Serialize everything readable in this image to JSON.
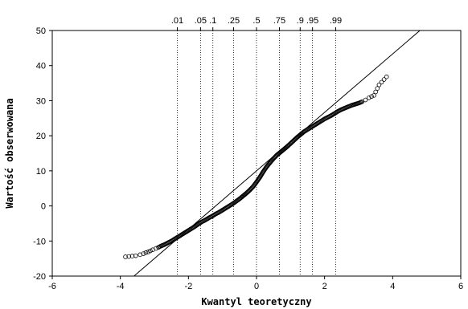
{
  "chart_data": {
    "type": "scatter",
    "title": "",
    "xlabel": "Kwantyl teoretyczny",
    "ylabel": "Wartość obserwowana",
    "xlim": [
      -6,
      6
    ],
    "ylim": [
      -20,
      50
    ],
    "xticks": [
      -6,
      -4,
      -2,
      0,
      2,
      4,
      6
    ],
    "yticks": [
      -20,
      -10,
      0,
      10,
      20,
      30,
      40,
      50
    ],
    "grid": false,
    "legend": "none",
    "probability_lines": [
      {
        "label": ".01",
        "z": -2.326
      },
      {
        "label": ".05",
        "z": -1.645
      },
      {
        "label": ".1",
        "z": -1.282
      },
      {
        "label": ".25",
        "z": -0.674
      },
      {
        "label": ".5",
        "z": 0.0
      },
      {
        "label": ".75",
        "z": 0.674
      },
      {
        "label": ".9",
        "z": 1.282
      },
      {
        "label": ".95",
        "z": 1.645
      },
      {
        "label": ".99",
        "z": 2.326
      }
    ],
    "reference_line": {
      "x": [
        -3.6,
        4.8
      ],
      "y": [
        -20,
        50
      ]
    },
    "series": [
      {
        "points": [
          [
            -3.85,
            -14.5
          ],
          [
            -3.55,
            -14.2
          ],
          [
            -3.42,
            -13.9
          ],
          [
            -3.32,
            -13.6
          ],
          [
            -3.25,
            -13.3
          ],
          [
            -3.18,
            -13.1
          ],
          [
            -3.12,
            -12.8
          ],
          [
            -3.05,
            -12.5
          ],
          [
            -2.95,
            -12.1
          ],
          [
            -2.88,
            -11.8
          ],
          [
            -2.8,
            -11.4
          ],
          [
            -2.7,
            -11.0
          ],
          [
            -2.6,
            -10.5
          ],
          [
            -2.5,
            -10.0
          ],
          [
            -2.4,
            -9.4
          ],
          [
            -2.3,
            -8.8
          ],
          [
            -2.2,
            -8.2
          ],
          [
            -2.1,
            -7.6
          ],
          [
            -2.0,
            -7.0
          ],
          [
            -1.9,
            -6.4
          ],
          [
            -1.8,
            -5.8
          ],
          [
            -1.7,
            -5.1
          ],
          [
            -1.6,
            -4.5
          ],
          [
            -1.5,
            -4.0
          ],
          [
            -1.4,
            -3.4
          ],
          [
            -1.3,
            -2.9
          ],
          [
            -1.2,
            -2.3
          ],
          [
            -1.1,
            -1.8
          ],
          [
            -1.0,
            -1.2
          ],
          [
            -0.9,
            -0.6
          ],
          [
            -0.8,
            0.0
          ],
          [
            -0.7,
            0.6
          ],
          [
            -0.6,
            1.3
          ],
          [
            -0.5,
            2.0
          ],
          [
            -0.4,
            2.8
          ],
          [
            -0.3,
            3.6
          ],
          [
            -0.2,
            4.5
          ],
          [
            -0.1,
            5.5
          ],
          [
            0.0,
            6.8
          ],
          [
            0.1,
            8.2
          ],
          [
            0.2,
            9.8
          ],
          [
            0.3,
            11.2
          ],
          [
            0.4,
            12.4
          ],
          [
            0.5,
            13.5
          ],
          [
            0.6,
            14.5
          ],
          [
            0.7,
            15.3
          ],
          [
            0.8,
            16.1
          ],
          [
            0.9,
            16.9
          ],
          [
            1.0,
            17.8
          ],
          [
            1.1,
            18.7
          ],
          [
            1.2,
            19.6
          ],
          [
            1.3,
            20.4
          ],
          [
            1.4,
            21.2
          ],
          [
            1.5,
            21.8
          ],
          [
            1.6,
            22.4
          ],
          [
            1.7,
            23.0
          ],
          [
            1.8,
            23.6
          ],
          [
            1.9,
            24.2
          ],
          [
            2.0,
            24.8
          ],
          [
            2.1,
            25.3
          ],
          [
            2.2,
            25.8
          ],
          [
            2.3,
            26.4
          ],
          [
            2.4,
            27.0
          ],
          [
            2.5,
            27.5
          ],
          [
            2.6,
            27.9
          ],
          [
            2.7,
            28.3
          ],
          [
            2.8,
            28.7
          ],
          [
            2.9,
            29.0
          ],
          [
            3.0,
            29.3
          ],
          [
            3.1,
            29.7
          ],
          [
            3.2,
            30.2
          ],
          [
            3.3,
            30.8
          ],
          [
            3.38,
            31.2
          ],
          [
            3.45,
            31.5
          ],
          [
            3.6,
            34.5
          ],
          [
            3.82,
            36.8
          ]
        ]
      }
    ]
  }
}
